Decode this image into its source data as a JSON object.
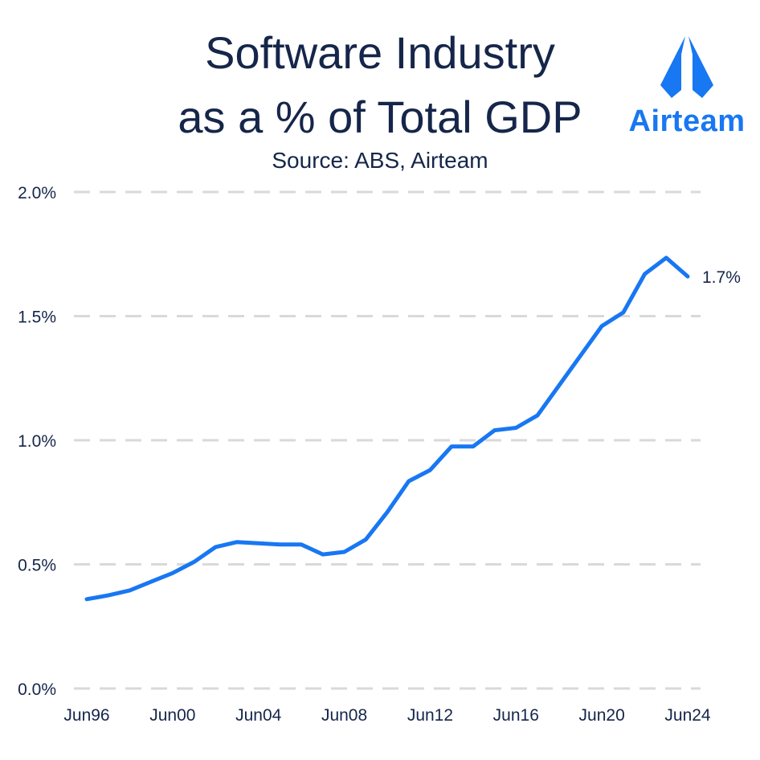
{
  "header": {
    "title_line1": "Software Industry",
    "title_line2": "as a % of Total GDP",
    "subtitle": "Source: ABS, Airteam"
  },
  "logo": {
    "text": "Airteam",
    "icon": "airteam-sail-icon",
    "color": "#1877f2"
  },
  "chart_data": {
    "type": "line",
    "title": "Software Industry as a % of Total GDP",
    "subtitle": "Source: ABS, Airteam",
    "x": [
      1996,
      1997,
      1998,
      1999,
      2000,
      2001,
      2002,
      2003,
      2004,
      2005,
      2006,
      2007,
      2008,
      2009,
      2010,
      2011,
      2012,
      2013,
      2014,
      2015,
      2016,
      2017,
      2018,
      2019,
      2020,
      2021,
      2022,
      2023,
      2024
    ],
    "x_tick_labels": [
      {
        "x": 1996,
        "label": "Jun96"
      },
      {
        "x": 2000,
        "label": "Jun00"
      },
      {
        "x": 2004,
        "label": "Jun04"
      },
      {
        "x": 2008,
        "label": "Jun08"
      },
      {
        "x": 2012,
        "label": "Jun12"
      },
      {
        "x": 2016,
        "label": "Jun16"
      },
      {
        "x": 2020,
        "label": "Jun20"
      },
      {
        "x": 2024,
        "label": "Jun24"
      }
    ],
    "series": [
      {
        "color": "#1877f2",
        "values": [
          0.36,
          0.375,
          0.395,
          0.43,
          0.465,
          0.51,
          0.57,
          0.59,
          0.585,
          0.58,
          0.58,
          0.54,
          0.55,
          0.6,
          0.71,
          0.835,
          0.88,
          0.975,
          0.975,
          1.04,
          1.05,
          1.1,
          1.22,
          1.34,
          1.46,
          1.515,
          1.67,
          1.735,
          1.66
        ]
      }
    ],
    "end_label": "1.7%",
    "y_ticks": [
      {
        "value": 0.0,
        "label": "0.0%"
      },
      {
        "value": 0.5,
        "label": "0.5%"
      },
      {
        "value": 1.0,
        "label": "1.0%"
      },
      {
        "value": 1.5,
        "label": "1.5%"
      },
      {
        "value": 2.0,
        "label": "2.0%"
      }
    ],
    "ylim": [
      0,
      2.0
    ],
    "xlim": [
      1996,
      2024
    ],
    "grid": true,
    "grid_style": "dashed-horizontal",
    "grid_color": "#d9d9d9",
    "text_color": "#15264a"
  }
}
